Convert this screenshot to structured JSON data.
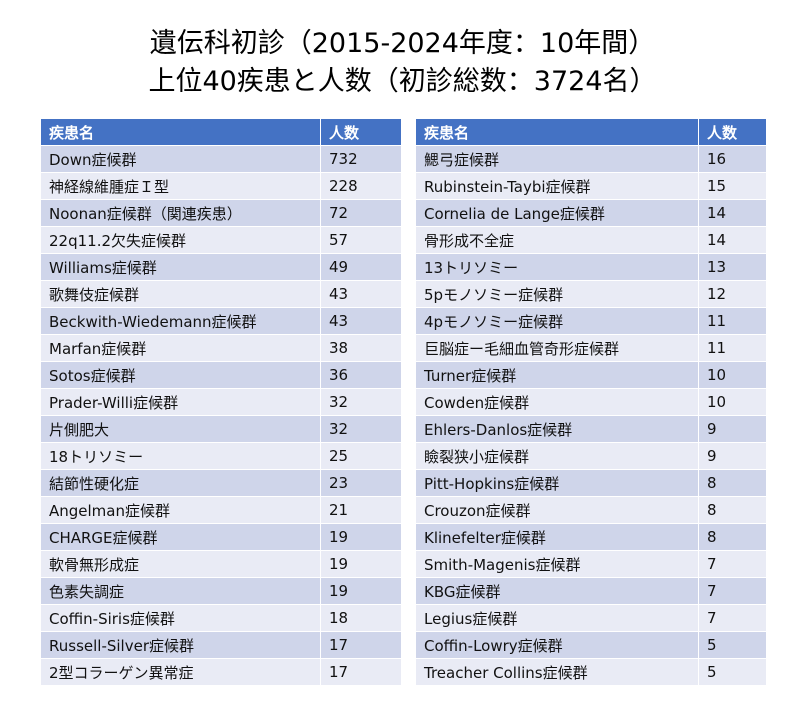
{
  "title_line1": "遺伝科初診（2015-2024年度：10年間）",
  "title_line2": "上位40疾患と人数（初診総数：3724名）",
  "header": {
    "name": "疾患名",
    "count": "人数"
  },
  "colors": {
    "header": "#4472c4",
    "row_dark": "#cfd5ea",
    "row_light": "#e9ebf5"
  },
  "left_rows": [
    [
      "Down症候群",
      "732"
    ],
    [
      "神経線維腫症Ｉ型",
      "228"
    ],
    [
      "Noonan症候群（関連疾患）",
      "72"
    ],
    [
      "22q11.2欠失症候群",
      "57"
    ],
    [
      "Williams症候群",
      "49"
    ],
    [
      "歌舞伎症候群",
      "43"
    ],
    [
      "Beckwith-Wiedemann症候群",
      "43"
    ],
    [
      "Marfan症候群",
      "38"
    ],
    [
      "Sotos症候群",
      "36"
    ],
    [
      "Prader-Willi症候群",
      "32"
    ],
    [
      "片側肥大",
      "32"
    ],
    [
      "18トリソミー",
      "25"
    ],
    [
      "結節性硬化症",
      "23"
    ],
    [
      "Angelman症候群",
      "21"
    ],
    [
      "CHARGE症候群",
      "19"
    ],
    [
      "軟骨無形成症",
      "19"
    ],
    [
      "色素失調症",
      "19"
    ],
    [
      "Coffin-Siris症候群",
      "18"
    ],
    [
      "Russell-Silver症候群",
      "17"
    ],
    [
      "2型コラーゲン異常症",
      "17"
    ]
  ],
  "right_rows": [
    [
      "鰓弓症候群",
      "16"
    ],
    [
      "Rubinstein-Taybi症候群",
      "15"
    ],
    [
      "Cornelia de Lange症候群",
      "14"
    ],
    [
      "骨形成不全症",
      "14"
    ],
    [
      "13トリソミー",
      "13"
    ],
    [
      "5pモノソミー症候群",
      "12"
    ],
    [
      "4pモノソミー症候群",
      "11"
    ],
    [
      "巨脳症ー毛細血管奇形症候群",
      "11"
    ],
    [
      "Turner症候群",
      "10"
    ],
    [
      "Cowden症候群",
      "10"
    ],
    [
      "Ehlers-Danlos症候群",
      "9"
    ],
    [
      "瞼裂狭小症候群",
      "9"
    ],
    [
      "Pitt-Hopkins症候群",
      "8"
    ],
    [
      "Crouzon症候群",
      "8"
    ],
    [
      "Klinefelter症候群",
      "8"
    ],
    [
      "Smith-Magenis症候群",
      "7"
    ],
    [
      "KBG症候群",
      "7"
    ],
    [
      "Legius症候群",
      "7"
    ],
    [
      "Coffin-Lowry症候群",
      "5"
    ],
    [
      "Treacher Collins症候群",
      "5"
    ]
  ]
}
